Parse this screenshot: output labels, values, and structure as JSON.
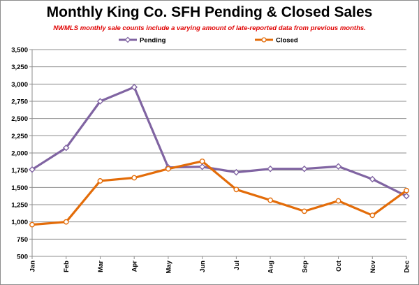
{
  "chart_data": {
    "type": "line",
    "title": "Monthly King Co. SFH Pending & Closed Sales",
    "subtitle": "NWMLS monthly sale counts include a varying amount of late-reported data from previous months.",
    "xlabel": "",
    "ylabel": "",
    "categories": [
      "Jan",
      "Feb",
      "Mar",
      "Apr",
      "May",
      "Jun",
      "Jul",
      "Aug",
      "Sep",
      "Oct",
      "Nov",
      "Dec"
    ],
    "ylim": [
      500,
      3500
    ],
    "yticks": [
      "500",
      "750",
      "1,000",
      "1,250",
      "1,500",
      "1,750",
      "2,000",
      "2,250",
      "2,500",
      "2,750",
      "3,000",
      "3,250",
      "3,500"
    ],
    "ytick_values": [
      500,
      750,
      1000,
      1250,
      1500,
      1750,
      2000,
      2250,
      2500,
      2750,
      3000,
      3250,
      3500
    ],
    "grid": true,
    "legend_placement": "top",
    "series": [
      {
        "name": "Pending",
        "color": "#8064a2",
        "values": [
          1760,
          2075,
          2750,
          2955,
          1790,
          1800,
          1720,
          1770,
          1770,
          1805,
          1620,
          1375
        ]
      },
      {
        "name": "Closed",
        "color": "#e36c09",
        "values": [
          960,
          1000,
          1595,
          1640,
          1770,
          1880,
          1470,
          1315,
          1155,
          1305,
          1095,
          1455
        ]
      }
    ]
  }
}
